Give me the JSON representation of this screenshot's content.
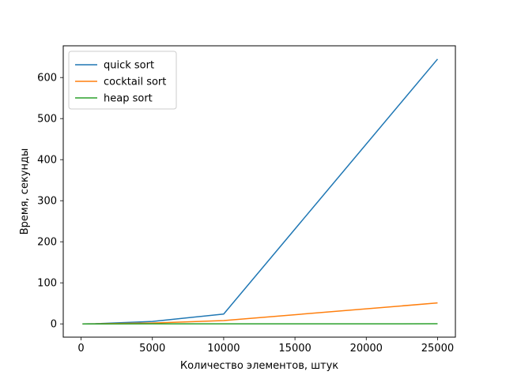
{
  "chart_data": {
    "type": "line",
    "xlabel": "Количество элементов, штук",
    "ylabel": "Время, секунды",
    "xlim": [
      -1250,
      26250
    ],
    "ylim": [
      -32.3,
      677.3
    ],
    "xticks": [
      0,
      5000,
      10000,
      15000,
      20000,
      25000
    ],
    "yticks": [
      0,
      100,
      200,
      300,
      400,
      500,
      600
    ],
    "x": [
      100,
      1000,
      5000,
      10000,
      25000
    ],
    "series": [
      {
        "name": "quick sort",
        "color": "#1f77b4",
        "values": [
          0.01,
          0.3,
          6,
          24,
          645
        ]
      },
      {
        "name": "cocktail sort",
        "color": "#ff7f0e",
        "values": [
          0.01,
          0.1,
          2,
          8,
          51
        ]
      },
      {
        "name": "heap sort",
        "color": "#2ca02c",
        "values": [
          0.0,
          0.0,
          0.05,
          0.1,
          0.3
        ]
      }
    ],
    "legend_position": "upper left",
    "grid": false
  }
}
